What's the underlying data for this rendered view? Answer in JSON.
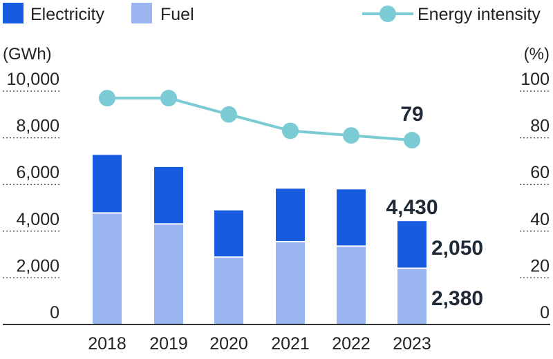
{
  "chart_data": {
    "type": "bar",
    "stacked": true,
    "categories": [
      "2018",
      "2019",
      "2020",
      "2021",
      "2022",
      "2023"
    ],
    "series": [
      {
        "name": "Fuel",
        "kind": "bar",
        "axis": "left",
        "color": "#9bb5f0",
        "values": [
          4750,
          4280,
          2860,
          3520,
          3330,
          2380
        ]
      },
      {
        "name": "Electricity",
        "kind": "bar",
        "axis": "left",
        "color": "#175ce0",
        "values": [
          2520,
          2470,
          2030,
          2300,
          2460,
          2050
        ]
      },
      {
        "name": "Energy intensity",
        "kind": "line",
        "axis": "right",
        "color": "#7acbd3",
        "values": [
          97,
          97,
          90,
          83,
          81,
          79
        ]
      }
    ],
    "left_axis": {
      "unit": "(GWh)",
      "min": 0,
      "max": 10000,
      "ticks": [
        0,
        2000,
        4000,
        6000,
        8000,
        10000
      ],
      "tick_labels": [
        "0",
        "2,000",
        "4,000",
        "6,000",
        "8,000",
        "10,000"
      ]
    },
    "right_axis": {
      "unit": "(%)",
      "min": 0,
      "max": 100,
      "ticks": [
        0,
        20,
        40,
        60,
        80,
        100
      ],
      "tick_labels": [
        "0",
        "20",
        "40",
        "60",
        "80",
        "100"
      ]
    },
    "grid": "dotted horizontal",
    "legend_placement": "top",
    "annotations": [
      {
        "text": "79",
        "refers_to": "Energy intensity 2023"
      },
      {
        "text": "4,430",
        "refers_to": "Total 2023"
      },
      {
        "text": "2,050",
        "refers_to": "Electricity 2023"
      },
      {
        "text": "2,380",
        "refers_to": "Fuel 2023"
      }
    ]
  }
}
